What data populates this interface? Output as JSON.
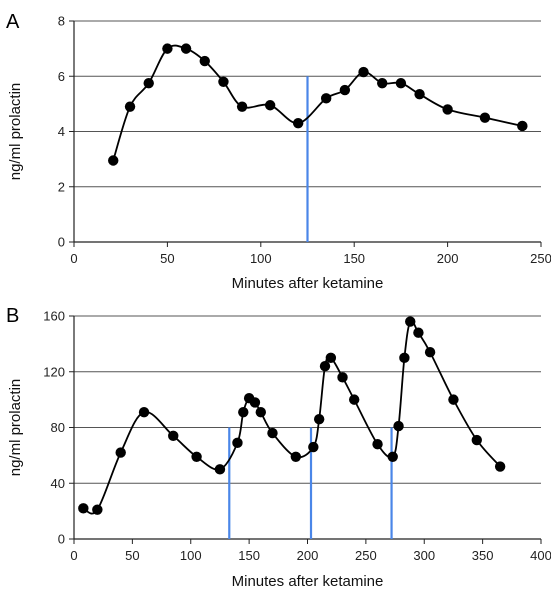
{
  "chart_data": [
    {
      "type": "line",
      "panel_label": "A",
      "xlabel": "Minutes after ketamine",
      "ylabel": "ng/ml prolactin",
      "xlim": [
        0,
        250
      ],
      "ylim": [
        0,
        8
      ],
      "xticks": [
        0,
        50,
        100,
        150,
        200,
        250
      ],
      "yticks": [
        0,
        2,
        4,
        6,
        8
      ],
      "grid": "horizontal",
      "series": [
        {
          "x": [
            21,
            30,
            40,
            50,
            60,
            70,
            80,
            90,
            105,
            120,
            135,
            145,
            155,
            165,
            175,
            185,
            200,
            220,
            240
          ],
          "y": [
            2.95,
            4.9,
            5.75,
            7.0,
            7.0,
            6.55,
            5.8,
            4.9,
            4.95,
            4.3,
            5.2,
            5.5,
            6.15,
            5.75,
            5.75,
            5.35,
            4.8,
            4.5,
            4.2
          ]
        }
      ],
      "vlines": [
        125
      ],
      "vline_top": 6
    },
    {
      "type": "line",
      "panel_label": "B",
      "xlabel": "Minutes after ketamine",
      "ylabel": "ng/ml prolactin",
      "xlim": [
        0,
        400
      ],
      "ylim": [
        0,
        160
      ],
      "xticks": [
        0,
        50,
        100,
        150,
        200,
        250,
        300,
        350,
        400
      ],
      "yticks": [
        0,
        40,
        80,
        120,
        160
      ],
      "grid": "horizontal",
      "series": [
        {
          "x": [
            8,
            20,
            40,
            60,
            85,
            105,
            125,
            140,
            145,
            150,
            155,
            160,
            170,
            190,
            205,
            210,
            215,
            220,
            230,
            240,
            260,
            273,
            278,
            283,
            288,
            295,
            305,
            325,
            345,
            365
          ],
          "y": [
            22,
            21,
            62,
            91,
            74,
            59,
            50,
            69,
            91,
            101,
            98,
            91,
            76,
            59,
            66,
            86,
            124,
            130,
            116,
            100,
            68,
            59,
            81,
            130,
            156,
            148,
            134,
            100,
            71,
            52
          ]
        }
      ],
      "vlines": [
        133,
        203,
        272
      ],
      "vline_top": 80
    }
  ],
  "colors": {
    "line": "#000000",
    "marker": "#000000",
    "vline": "#4a86e8",
    "grid": "#555555"
  }
}
